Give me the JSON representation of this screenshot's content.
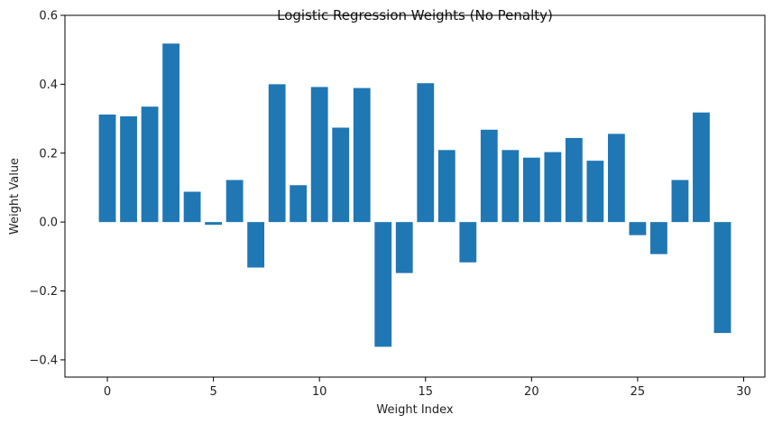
{
  "chart_data": {
    "type": "bar",
    "title": "Logistic Regression Weights (No Penalty)",
    "xlabel": "Weight Index",
    "ylabel": "Weight Value",
    "x": [
      0,
      1,
      2,
      3,
      4,
      5,
      6,
      7,
      8,
      9,
      10,
      11,
      12,
      13,
      14,
      15,
      16,
      17,
      18,
      19,
      20,
      21,
      22,
      23,
      24,
      25,
      26,
      27,
      28,
      29
    ],
    "values": [
      0.312,
      0.307,
      0.335,
      0.518,
      0.088,
      -0.008,
      0.122,
      -0.132,
      0.4,
      0.107,
      0.392,
      0.274,
      0.389,
      -0.362,
      -0.148,
      0.403,
      0.209,
      -0.117,
      0.268,
      0.209,
      0.187,
      0.203,
      0.244,
      0.178,
      0.256,
      -0.038,
      -0.093,
      0.122,
      0.318,
      -0.322
    ],
    "xlim": [
      -2,
      31
    ],
    "ylim": [
      -0.45,
      0.6
    ],
    "xticks": [
      0,
      5,
      10,
      15,
      20,
      25,
      30
    ],
    "xtick_labels": [
      "0",
      "5",
      "10",
      "15",
      "20",
      "25",
      "30"
    ],
    "yticks": [
      -0.4,
      -0.2,
      0.0,
      0.2,
      0.4,
      0.6
    ],
    "ytick_labels": [
      "−0.4",
      "−0.2",
      "0.0",
      "0.2",
      "0.4",
      "0.6"
    ],
    "bar_color": "#1f77b4",
    "grid": false
  }
}
